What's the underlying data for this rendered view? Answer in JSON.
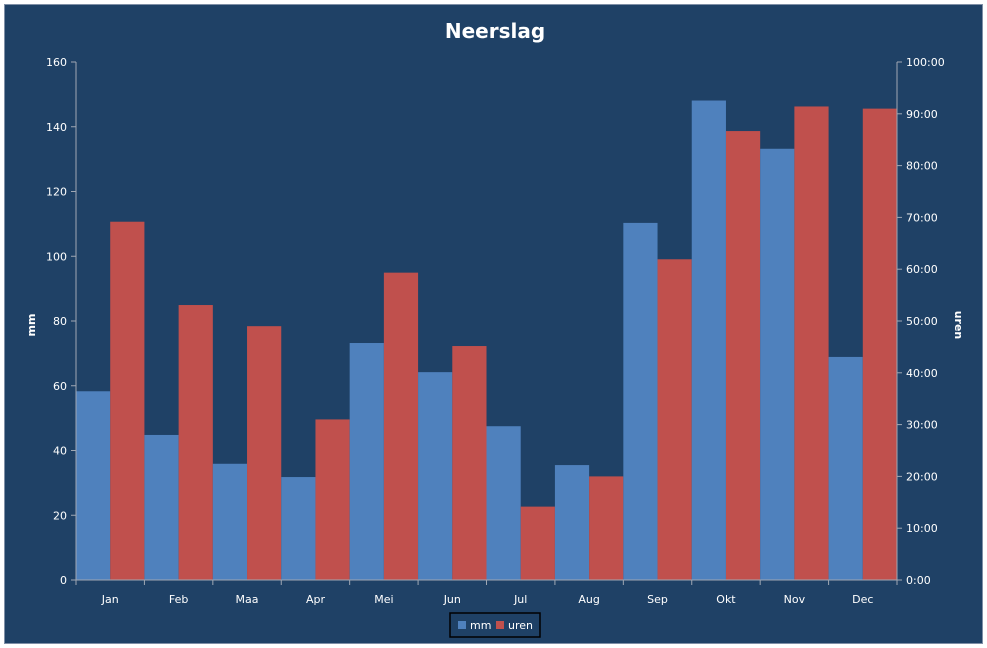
{
  "colors": {
    "background": "#1f4166",
    "mm": "#4f81bd",
    "uren": "#c0504d",
    "axis": "#a0a8b4",
    "text": "#ffffff"
  },
  "chart_data": {
    "type": "bar",
    "title": "Neerslag",
    "categories": [
      "Jan",
      "Feb",
      "Maa",
      "Apr",
      "Mei",
      "Jun",
      "Jul",
      "Aug",
      "Sep",
      "Okt",
      "Nov",
      "Dec"
    ],
    "series": [
      {
        "name": "mm",
        "axis": "left",
        "values": [
          58.3,
          44.8,
          35.9,
          31.8,
          73.2,
          64.2,
          47.5,
          35.5,
          110.3,
          148.1,
          133.2,
          68.9
        ]
      },
      {
        "name": "uren",
        "axis": "right",
        "values": [
          "69:10",
          "53:05",
          "49:00",
          "31:00",
          "59:20",
          "45:10",
          "14:10",
          "20:00",
          "61:55",
          "86:40",
          "91:25",
          "91:00"
        ]
      }
    ],
    "ylabel": "mm",
    "y2label": "uren",
    "ylim": [
      0,
      160
    ],
    "y2lim": [
      "0:00",
      "100:00"
    ],
    "yticks": [
      "0",
      "20",
      "40",
      "60",
      "80",
      "100",
      "120",
      "140",
      "160"
    ],
    "y2ticks": [
      "0:00",
      "10:00",
      "20:00",
      "30:00",
      "40:00",
      "50:00",
      "60:00",
      "70:00",
      "80:00",
      "90:00",
      "100:00"
    ],
    "grid": false,
    "legend": "bottom"
  }
}
